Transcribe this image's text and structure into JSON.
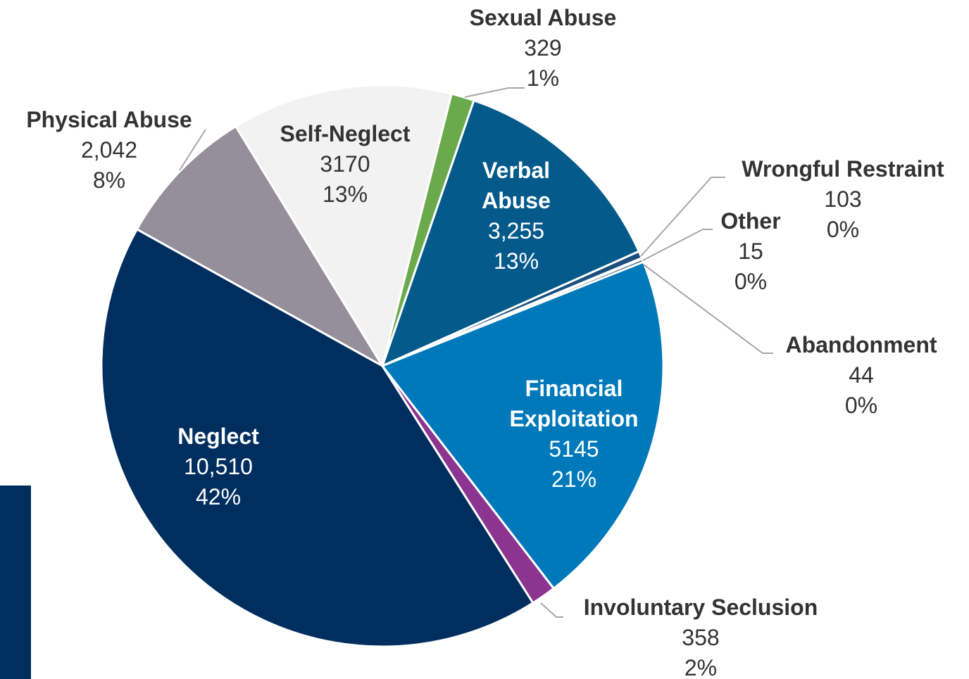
{
  "chart_data": {
    "type": "pie",
    "categories": [
      "Verbal Abuse",
      "Wrongful Restraint",
      "Other",
      "Abandonment",
      "Financial Exploitation",
      "Involuntary Seclusion",
      "Neglect",
      "Physical Abuse",
      "Self-Neglect",
      "Sexual Abuse"
    ],
    "values": [
      3255,
      103,
      15,
      44,
      5145,
      358,
      10510,
      2042,
      3170,
      329
    ],
    "value_labels": [
      "3,255",
      "103",
      "15",
      "44",
      "5145",
      "358",
      "10,510",
      "2,042",
      "3170",
      "329"
    ],
    "percent_labels": [
      "13%",
      "0%",
      "0%",
      "0%",
      "21%",
      "2%",
      "42%",
      "8%",
      "13%",
      "1%"
    ],
    "colors": [
      "#045a8a",
      "#1b4f7d",
      "#f2f2f2",
      "#1e4f7b",
      "#0079bb",
      "#8b3590",
      "#002f5f",
      "#958f9b",
      "#f2f2f2",
      "#6aaa4c"
    ]
  }
}
